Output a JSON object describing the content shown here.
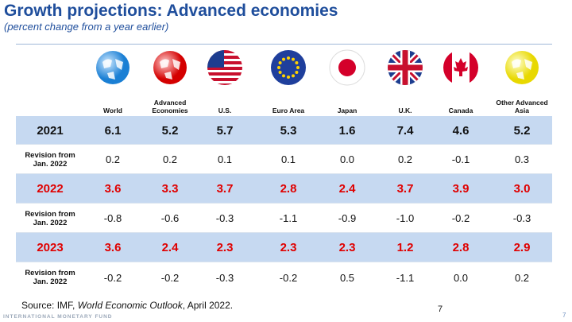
{
  "title": "Growth projections:  Advanced economies",
  "subtitle": "(percent change from a year earlier)",
  "table": {
    "columns": [
      "World",
      "Advanced Economies",
      "U.S.",
      "Euro Area",
      "Japan",
      "U.K.",
      "Canada",
      "Other Advanced Asia"
    ],
    "rows": [
      {
        "label": "2021",
        "values": [
          "6.1",
          "5.2",
          "5.7",
          "5.3",
          "1.6",
          "7.4",
          "4.6",
          "5.2"
        ]
      },
      {
        "label": "Revision from Jan. 2022",
        "values": [
          "0.2",
          "0.2",
          "0.1",
          "0.1",
          "0.0",
          "0.2",
          "-0.1",
          "0.3"
        ]
      },
      {
        "label": "2022",
        "values": [
          "3.6",
          "3.3",
          "3.7",
          "2.8",
          "2.4",
          "3.7",
          "3.9",
          "3.0"
        ]
      },
      {
        "label": "Revision from Jan. 2022",
        "values": [
          "-0.8",
          "-0.6",
          "-0.3",
          "-1.1",
          "-0.9",
          "-1.0",
          "-0.2",
          "-0.3"
        ]
      },
      {
        "label": "2023",
        "values": [
          "3.6",
          "2.4",
          "2.3",
          "2.3",
          "2.3",
          "1.2",
          "2.8",
          "2.9"
        ]
      },
      {
        "label": "Revision from Jan. 2022",
        "values": [
          "-0.2",
          "-0.2",
          "-0.3",
          "-0.2",
          "0.5",
          "-1.1",
          "0.0",
          "0.2"
        ]
      }
    ]
  },
  "source": {
    "prefix": "Source: IMF, ",
    "publication": "World Economic Outlook",
    "suffix": ", April 2022."
  },
  "page_number": "7",
  "footer": {
    "organization": "INTERNATIONAL MONETARY FUND",
    "page_number": "7"
  }
}
